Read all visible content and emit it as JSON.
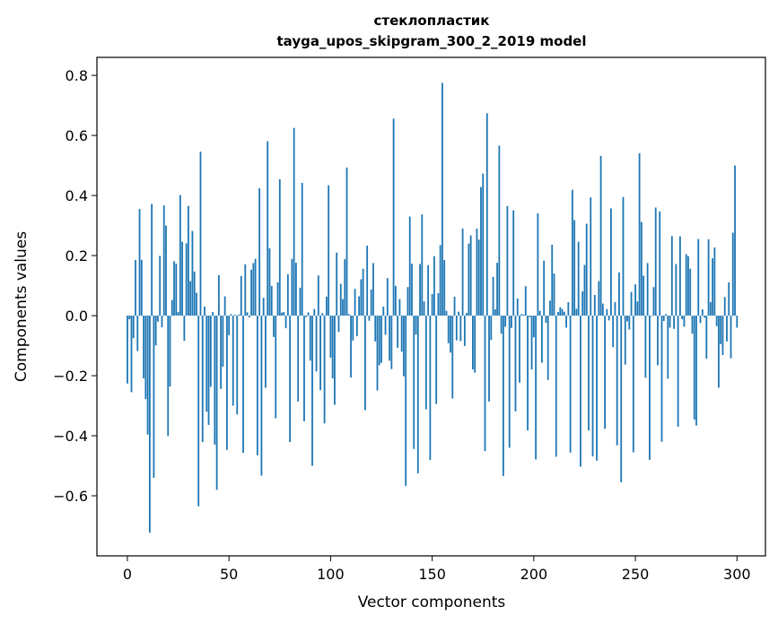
{
  "chart_data": {
    "type": "bar",
    "title_line1": "стеклопластик",
    "title_line2": "tayga_upos_skipgram_300_2_2019 model",
    "xlabel": "Vector components",
    "ylabel": "Components values",
    "xlim": [
      -15,
      314
    ],
    "ylim": [
      -0.8,
      0.86
    ],
    "xticks": [
      0,
      50,
      100,
      150,
      200,
      250,
      300
    ],
    "yticks": [
      -0.6,
      -0.4,
      -0.2,
      0.0,
      0.2,
      0.4,
      0.6,
      0.8
    ],
    "ytick_labels": [
      "−0.6",
      "−0.4",
      "−0.2",
      "0.0",
      "0.2",
      "0.4",
      "0.6",
      "0.8"
    ],
    "bar_color": "#1f77b4",
    "values": [
      -0.226,
      -0.012,
      -0.255,
      -0.075,
      0.185,
      -0.118,
      0.355,
      0.186,
      -0.209,
      -0.278,
      -0.396,
      -0.723,
      0.372,
      -0.54,
      -0.099,
      -0.02,
      0.199,
      -0.039,
      0.367,
      0.3,
      -0.401,
      -0.236,
      0.052,
      0.181,
      0.173,
      0.012,
      0.402,
      0.246,
      -0.084,
      0.241,
      0.365,
      0.115,
      0.282,
      0.147,
      0.076,
      -0.635,
      0.546,
      -0.421,
      0.03,
      -0.32,
      -0.364,
      -0.237,
      0.012,
      -0.43,
      -0.58,
      0.135,
      -0.244,
      -0.17,
      0.064,
      -0.447,
      -0.065,
      0.005,
      -0.3,
      0.003,
      -0.329,
      0.004,
      0.132,
      -0.457,
      0.171,
      0.011,
      -0.006,
      0.153,
      0.175,
      0.189,
      -0.465,
      0.424,
      -0.533,
      0.059,
      -0.24,
      0.581,
      0.224,
      0.099,
      -0.071,
      -0.342,
      0.111,
      0.454,
      0.01,
      0.012,
      -0.042,
      0.138,
      -0.421,
      0.189,
      0.625,
      0.176,
      -0.286,
      0.093,
      0.442,
      -0.352,
      -0.005,
      0.011,
      -0.15,
      -0.5,
      0.022,
      -0.186,
      0.134,
      -0.248,
      0.008,
      -0.359,
      0.063,
      0.434,
      -0.14,
      -0.209,
      -0.297,
      0.21,
      -0.054,
      0.106,
      0.055,
      0.188,
      0.493,
      0.005,
      -0.206,
      -0.083,
      0.089,
      -0.068,
      0.064,
      0.121,
      0.156,
      -0.315,
      0.233,
      -0.017,
      0.087,
      0.175,
      -0.086,
      -0.249,
      -0.165,
      -0.157,
      0.03,
      -0.064,
      0.125,
      -0.15,
      -0.178,
      0.656,
      0.099,
      -0.107,
      0.055,
      -0.12,
      -0.202,
      -0.567,
      0.095,
      0.33,
      0.173,
      -0.444,
      -0.063,
      -0.525,
      0.172,
      0.337,
      0.047,
      -0.312,
      0.168,
      -0.481,
      0.072,
      0.198,
      -0.294,
      0.075,
      0.235,
      0.775,
      0.185,
      0.016,
      -0.092,
      -0.123,
      -0.276,
      0.063,
      -0.082,
      0.013,
      -0.085,
      0.29,
      -0.101,
      0.009,
      0.24,
      0.267,
      -0.179,
      -0.19,
      0.29,
      0.253,
      0.428,
      0.473,
      -0.451,
      0.674,
      -0.286,
      -0.081,
      0.129,
      0.021,
      0.176,
      0.566,
      -0.06,
      -0.534,
      -0.037,
      0.365,
      -0.44,
      -0.041,
      0.351,
      -0.319,
      0.057,
      -0.223,
      0.005,
      0.003,
      0.098,
      -0.382,
      -0.005,
      -0.179,
      -0.072,
      -0.479,
      0.341,
      0.016,
      -0.157,
      0.183,
      -0.024,
      -0.214,
      0.05,
      0.236,
      0.14,
      -0.47,
      0.012,
      0.028,
      0.022,
      0.013,
      -0.04,
      0.045,
      -0.456,
      0.419,
      0.318,
      0.023,
      0.246,
      -0.503,
      0.081,
      0.169,
      0.306,
      -0.382,
      0.394,
      -0.469,
      0.069,
      -0.483,
      0.115,
      0.532,
      0.04,
      -0.377,
      0.022,
      -0.016,
      0.357,
      -0.105,
      0.045,
      -0.432,
      0.144,
      -0.555,
      0.395,
      -0.163,
      -0.019,
      -0.046,
      0.079,
      -0.455,
      0.104,
      0.047,
      0.541,
      0.312,
      0.133,
      -0.207,
      0.175,
      -0.48,
      -0.002,
      0.095,
      0.36,
      -0.165,
      0.347,
      -0.42,
      -0.018,
      0.005,
      -0.21,
      -0.04,
      0.265,
      -0.044,
      0.172,
      -0.37,
      0.264,
      -0.012,
      -0.037,
      0.205,
      0.198,
      0.156,
      -0.06,
      -0.346,
      -0.366,
      0.255,
      -0.025,
      0.021,
      -0.007,
      -0.143,
      0.254,
      0.045,
      0.191,
      0.227,
      -0.035,
      -0.24,
      -0.095,
      -0.131,
      0.062,
      -0.086,
      0.111,
      -0.142,
      0.276,
      0.5,
      -0.04
    ]
  }
}
